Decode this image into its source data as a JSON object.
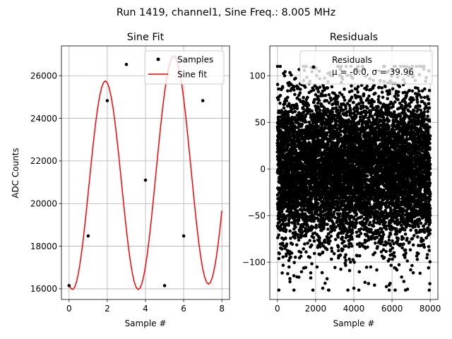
{
  "figure": {
    "suptitle": "Run 1419, channel1, Sine Freq.: 8.005 MHz"
  },
  "chart_data": [
    {
      "type": "scatter",
      "title": "Sine Fit",
      "xlabel": "Sample #",
      "ylabel": "ADC Counts",
      "xlim": [
        -0.4,
        8.4
      ],
      "ylim": [
        15500,
        27400
      ],
      "xticks": [
        0,
        2,
        4,
        6,
        8
      ],
      "yticks": [
        16000,
        18000,
        20000,
        22000,
        24000,
        26000
      ],
      "grid": true,
      "legend_position": "top-right",
      "series": [
        {
          "name": "Samples",
          "kind": "points",
          "color": "#000000",
          "x": [
            0,
            1,
            2,
            3,
            4,
            5,
            6,
            7
          ],
          "y": [
            16150,
            18480,
            24830,
            26530,
            21100,
            16150,
            18480,
            24830
          ]
        },
        {
          "name": "Sine fit",
          "kind": "line",
          "color": "#ff0000",
          "x": [
            0,
            0.1,
            0.2,
            0.3,
            0.4,
            0.5,
            0.6,
            0.7,
            0.8,
            0.9,
            1.0,
            1.1,
            1.2,
            1.3,
            1.4,
            1.5,
            1.6,
            1.7,
            1.8,
            1.9,
            2.0,
            2.1,
            2.2,
            2.3,
            2.4,
            2.5,
            2.6,
            2.7,
            2.8,
            2.9,
            3.0,
            3.1,
            3.2,
            3.3,
            3.4,
            3.5,
            3.6,
            3.7,
            3.8,
            3.9,
            4.0,
            4.1,
            4.2,
            4.3,
            4.4,
            4.5,
            4.6,
            4.7,
            4.8,
            4.9,
            5.0,
            5.1,
            5.2,
            5.3,
            5.4,
            5.5,
            5.6,
            5.7,
            5.8,
            5.9,
            6.0,
            6.1,
            6.2,
            6.3,
            6.4,
            6.5,
            6.6,
            6.7,
            6.8,
            6.9,
            7.0,
            7.1,
            7.2,
            7.3,
            7.4,
            7.5,
            7.6,
            7.7,
            7.8,
            7.9,
            8.0
          ],
          "y": [
            16210,
            16012,
            15971,
            16090,
            16365,
            16787,
            17343,
            18015,
            18781,
            19618,
            20496,
            21387,
            22263,
            23092,
            23848,
            24504,
            25038,
            25433,
            25675,
            25757,
            25674,
            25431,
            25035,
            24502,
            23845,
            23089,
            22259,
            21383,
            20492,
            19614,
            18778,
            18012,
            17340,
            16785,
            16363,
            16089,
            15971,
            16013,
            16212,
            16562,
            17052,
            17667,
            18389,
            19198,
            20070,
            20981,
            21905,
            22815,
            23687,
            24495,
            25217,
            25833,
            26326,
            26680,
            26884,
            26931,
            26820,
            26554,
            26141,
            25592,
            24924,
            24156,
            23311,
            22414,
            21493,
            20574,
            19684,
            18852,
            18101,
            17454,
            16930,
            16543,
            16305,
            16223,
            16299,
            16530,
            16911,
            17431,
            18076,
            18830,
            19672
          ]
        }
      ]
    },
    {
      "type": "scatter",
      "title": "Residuals",
      "xlabel": "Sample #",
      "ylabel": "",
      "xlim": [
        -400,
        8400
      ],
      "ylim": [
        -140,
        132
      ],
      "xticks": [
        0,
        2000,
        4000,
        6000,
        8000
      ],
      "yticks": [
        -100,
        -50,
        0,
        50,
        100
      ],
      "grid": true,
      "legend_position": "top-right",
      "n_points": 8000,
      "mean": -0.0,
      "std": 39.96,
      "series": [
        {
          "name": "Residuals",
          "color": "#000000",
          "stats_label": "μ = -0.0, σ = 39.96",
          "x_range": [
            0,
            7999
          ],
          "y_range": [
            -130,
            110
          ]
        }
      ]
    }
  ]
}
